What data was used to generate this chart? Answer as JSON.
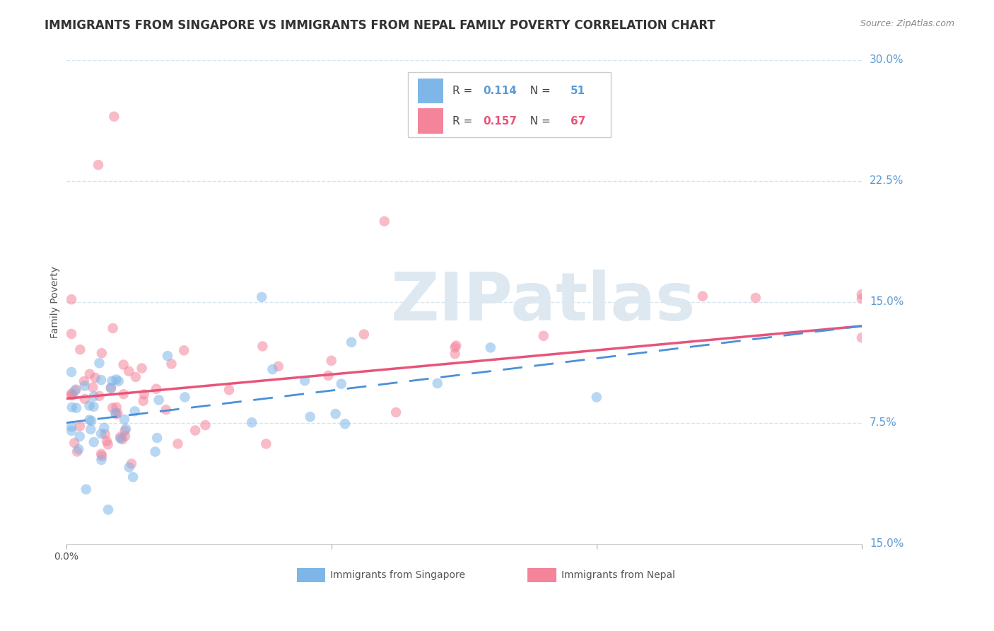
{
  "title": "IMMIGRANTS FROM SINGAPORE VS IMMIGRANTS FROM NEPAL FAMILY POVERTY CORRELATION CHART",
  "source": "Source: ZipAtlas.com",
  "ylabel": "Family Poverty",
  "xlim": [
    0.0,
    0.15
  ],
  "ylim": [
    0.0,
    0.3
  ],
  "yticks_right": [
    0.075,
    0.15,
    0.225,
    0.3
  ],
  "ytick_labels_right": [
    "7.5%",
    "15.0%",
    "22.5%",
    "30.0%"
  ],
  "singapore_color": "#7EB6E8",
  "nepal_color": "#F4849A",
  "singapore_line_color": "#4A90D9",
  "nepal_line_color": "#E8547A",
  "singapore_r": 0.114,
  "singapore_n": 51,
  "nepal_r": 0.157,
  "nepal_n": 67,
  "watermark_text": "ZIPatlas",
  "watermark_color": "#dde8f0",
  "background_color": "#ffffff",
  "grid_color": "#d8e4ed",
  "title_fontsize": 12,
  "axis_label_fontsize": 10,
  "right_label_color": "#5B9BD5",
  "legend_border_color": "#cccccc"
}
